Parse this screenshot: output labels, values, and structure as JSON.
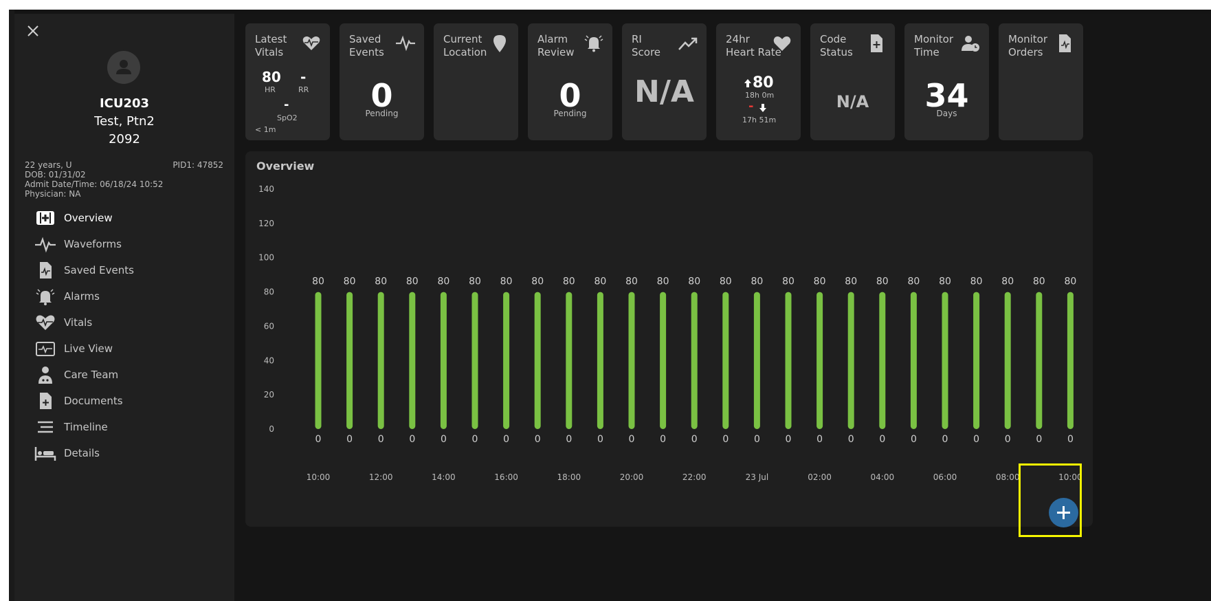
{
  "patient": {
    "bed": "ICU203",
    "name": "Test, Ptn2",
    "id": "2092",
    "age_sex": "22 years, U",
    "pid1": "PID1: 47852",
    "dob": "DOB: 01/31/02",
    "admit": "Admit Date/Time: 06/18/24 10:52",
    "physician": "Physician: NA"
  },
  "nav": [
    {
      "label": "Overview",
      "icon": "medical-kit-icon",
      "active": true
    },
    {
      "label": "Waveforms",
      "icon": "waveform-icon"
    },
    {
      "label": "Saved Events",
      "icon": "saved-events-file-icon"
    },
    {
      "label": "Alarms",
      "icon": "bell-icon"
    },
    {
      "label": "Vitals",
      "icon": "heart-pulse-icon"
    },
    {
      "label": "Live View",
      "icon": "monitor-icon"
    },
    {
      "label": "Care Team",
      "icon": "doctor-icon"
    },
    {
      "label": "Documents",
      "icon": "document-plus-icon"
    },
    {
      "label": "Timeline",
      "icon": "timeline-icon"
    },
    {
      "label": "Details",
      "icon": "bed-icon"
    }
  ],
  "cards": {
    "latest_vitals": {
      "title": "Latest\nVitals",
      "icon": "heart-pulse-icon",
      "hr_value": "80",
      "hr_label": "HR",
      "rr_value": "-",
      "rr_label": "RR",
      "spo2_value": "-",
      "spo2_label": "SpO2",
      "age": "< 1m"
    },
    "saved_events": {
      "title": "Saved\nEvents",
      "icon": "waveform-icon",
      "value": "0",
      "label": "Pending"
    },
    "current_location": {
      "title": "Current\nLocation",
      "icon": "location-pin-icon"
    },
    "alarm_review": {
      "title": "Alarm\nReview",
      "icon": "alarm-bell-icon",
      "value": "0",
      "label": "Pending"
    },
    "ri_score": {
      "title": "RI\nScore",
      "icon": "trend-up-icon",
      "value": "N/A"
    },
    "heart_rate_24": {
      "title": "24hr\nHeart Rate",
      "icon": "heart-icon",
      "max_value": "80",
      "max_time": "18h 0m",
      "min_value": "-",
      "min_time": "17h 51m"
    },
    "code_status": {
      "title": "Code\nStatus",
      "icon": "document-plus-icon",
      "value": "N/A"
    },
    "monitor_time": {
      "title": "Monitor\nTime",
      "icon": "user-clock-icon",
      "value": "34",
      "label": "Days"
    },
    "monitor_orders": {
      "title": "Monitor\nOrders",
      "icon": "order-file-icon"
    }
  },
  "overview": {
    "title": "Overview"
  },
  "chart_data": {
    "type": "bar",
    "title": "",
    "ylim": [
      0,
      140
    ],
    "yticks": [
      0,
      20,
      40,
      60,
      80,
      100,
      120,
      140
    ],
    "x_tick_labels": [
      "10:00",
      "12:00",
      "14:00",
      "16:00",
      "18:00",
      "20:00",
      "22:00",
      "23 Jul",
      "02:00",
      "04:00",
      "06:00",
      "08:00",
      "10:00"
    ],
    "series": [
      {
        "low": [
          0,
          0,
          0,
          0,
          0,
          0,
          0,
          0,
          0,
          0,
          0,
          0,
          0,
          0,
          0,
          0,
          0,
          0,
          0,
          0,
          0,
          0,
          0,
          0,
          0
        ],
        "high": [
          80,
          80,
          80,
          80,
          80,
          80,
          80,
          80,
          80,
          80,
          80,
          80,
          80,
          80,
          80,
          80,
          80,
          80,
          80,
          80,
          80,
          80,
          80,
          80,
          80
        ]
      }
    ],
    "bar_color": "#7ac143",
    "grid": false
  },
  "colors": {
    "accent": "#2b6aa0",
    "bar": "#7ac143",
    "alert": "#e53935",
    "highlight": "#f6f600"
  },
  "add_button": {
    "icon": "plus-icon"
  }
}
